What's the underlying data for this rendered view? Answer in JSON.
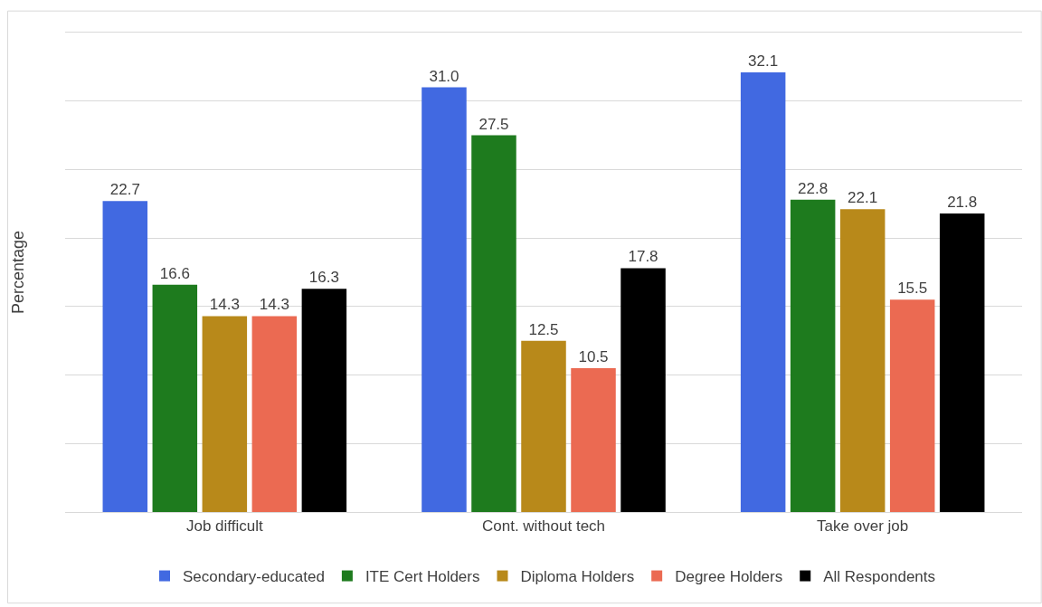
{
  "chart_data": {
    "type": "bar",
    "ylabel": "Percentage",
    "categories": [
      "Job difficult",
      "Cont. without tech",
      "Take over job"
    ],
    "series": [
      {
        "name": "Secondary-educated",
        "color": "#4169e1",
        "values": [
          22.7,
          31.0,
          32.1
        ],
        "value_labels": [
          "22.7",
          "31.0",
          "32.1"
        ]
      },
      {
        "name": "ITE Cert Holders",
        "color": "#1e7b1e",
        "values": [
          16.6,
          27.5,
          22.8
        ],
        "value_labels": [
          "16.6",
          "27.5",
          "22.8"
        ]
      },
      {
        "name": "Diploma Holders",
        "color": "#b8891a",
        "values": [
          14.3,
          12.5,
          22.1
        ],
        "value_labels": [
          "14.3",
          "12.5",
          "22.1"
        ]
      },
      {
        "name": "Degree Holders",
        "color": "#eb6a52",
        "values": [
          14.3,
          10.5,
          15.5
        ],
        "value_labels": [
          "14.3",
          "10.5",
          "15.5"
        ]
      },
      {
        "name": "All Respondents",
        "color": "#000000",
        "values": [
          16.3,
          17.8,
          21.8
        ],
        "value_labels": [
          "16.3",
          "17.8",
          "21.8"
        ]
      }
    ],
    "ylim": [
      0,
      35
    ],
    "yticks": [
      {
        "value": 0,
        "label": null
      },
      {
        "value": 5,
        "label": null
      },
      {
        "value": 10,
        "label": null
      },
      {
        "value": 15,
        "label": null
      },
      {
        "value": 20,
        "label": null
      },
      {
        "value": 25,
        "label": null
      },
      {
        "value": 30,
        "label": null
      },
      {
        "value": 35,
        "label": null
      }
    ],
    "grid": "y",
    "legend": "bottom"
  }
}
